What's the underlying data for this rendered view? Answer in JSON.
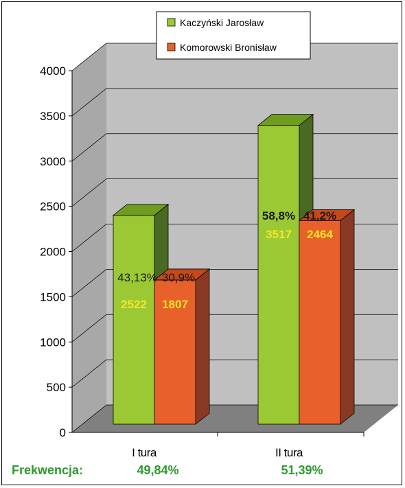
{
  "chart_data": {
    "type": "bar",
    "categories": [
      "I tura",
      "II tura"
    ],
    "series": [
      {
        "name": "Kaczyński Jarosław",
        "values": [
          2522,
          3517
        ],
        "percent_labels": [
          "43,13%",
          "58,8%"
        ]
      },
      {
        "name": "Komorowski Bronisław",
        "values": [
          1807,
          2464
        ],
        "percent_labels": [
          "30,9%",
          "41,2%"
        ]
      }
    ],
    "ylim": [
      0,
      4000
    ],
    "yticks": [
      0,
      500,
      1000,
      1500,
      2000,
      2500,
      3000,
      3500,
      4000
    ],
    "grid": true,
    "legend_position": "top",
    "colors": {
      "kaczynski_front": "#9ac934",
      "kaczynski_top": "#6f9d1f",
      "kaczynski_side": "#4a6a24",
      "komorowski_front": "#e8602a",
      "komorowski_top": "#c54818",
      "komorowski_side": "#8a3a22",
      "wall": "#c0c0c0",
      "floor": "#808080",
      "value_label": "#f5e62a",
      "turnout": "#2e9a2e"
    }
  },
  "turnout": {
    "label": "Frekwencja:",
    "values": [
      "49,84%",
      "51,39%"
    ]
  }
}
